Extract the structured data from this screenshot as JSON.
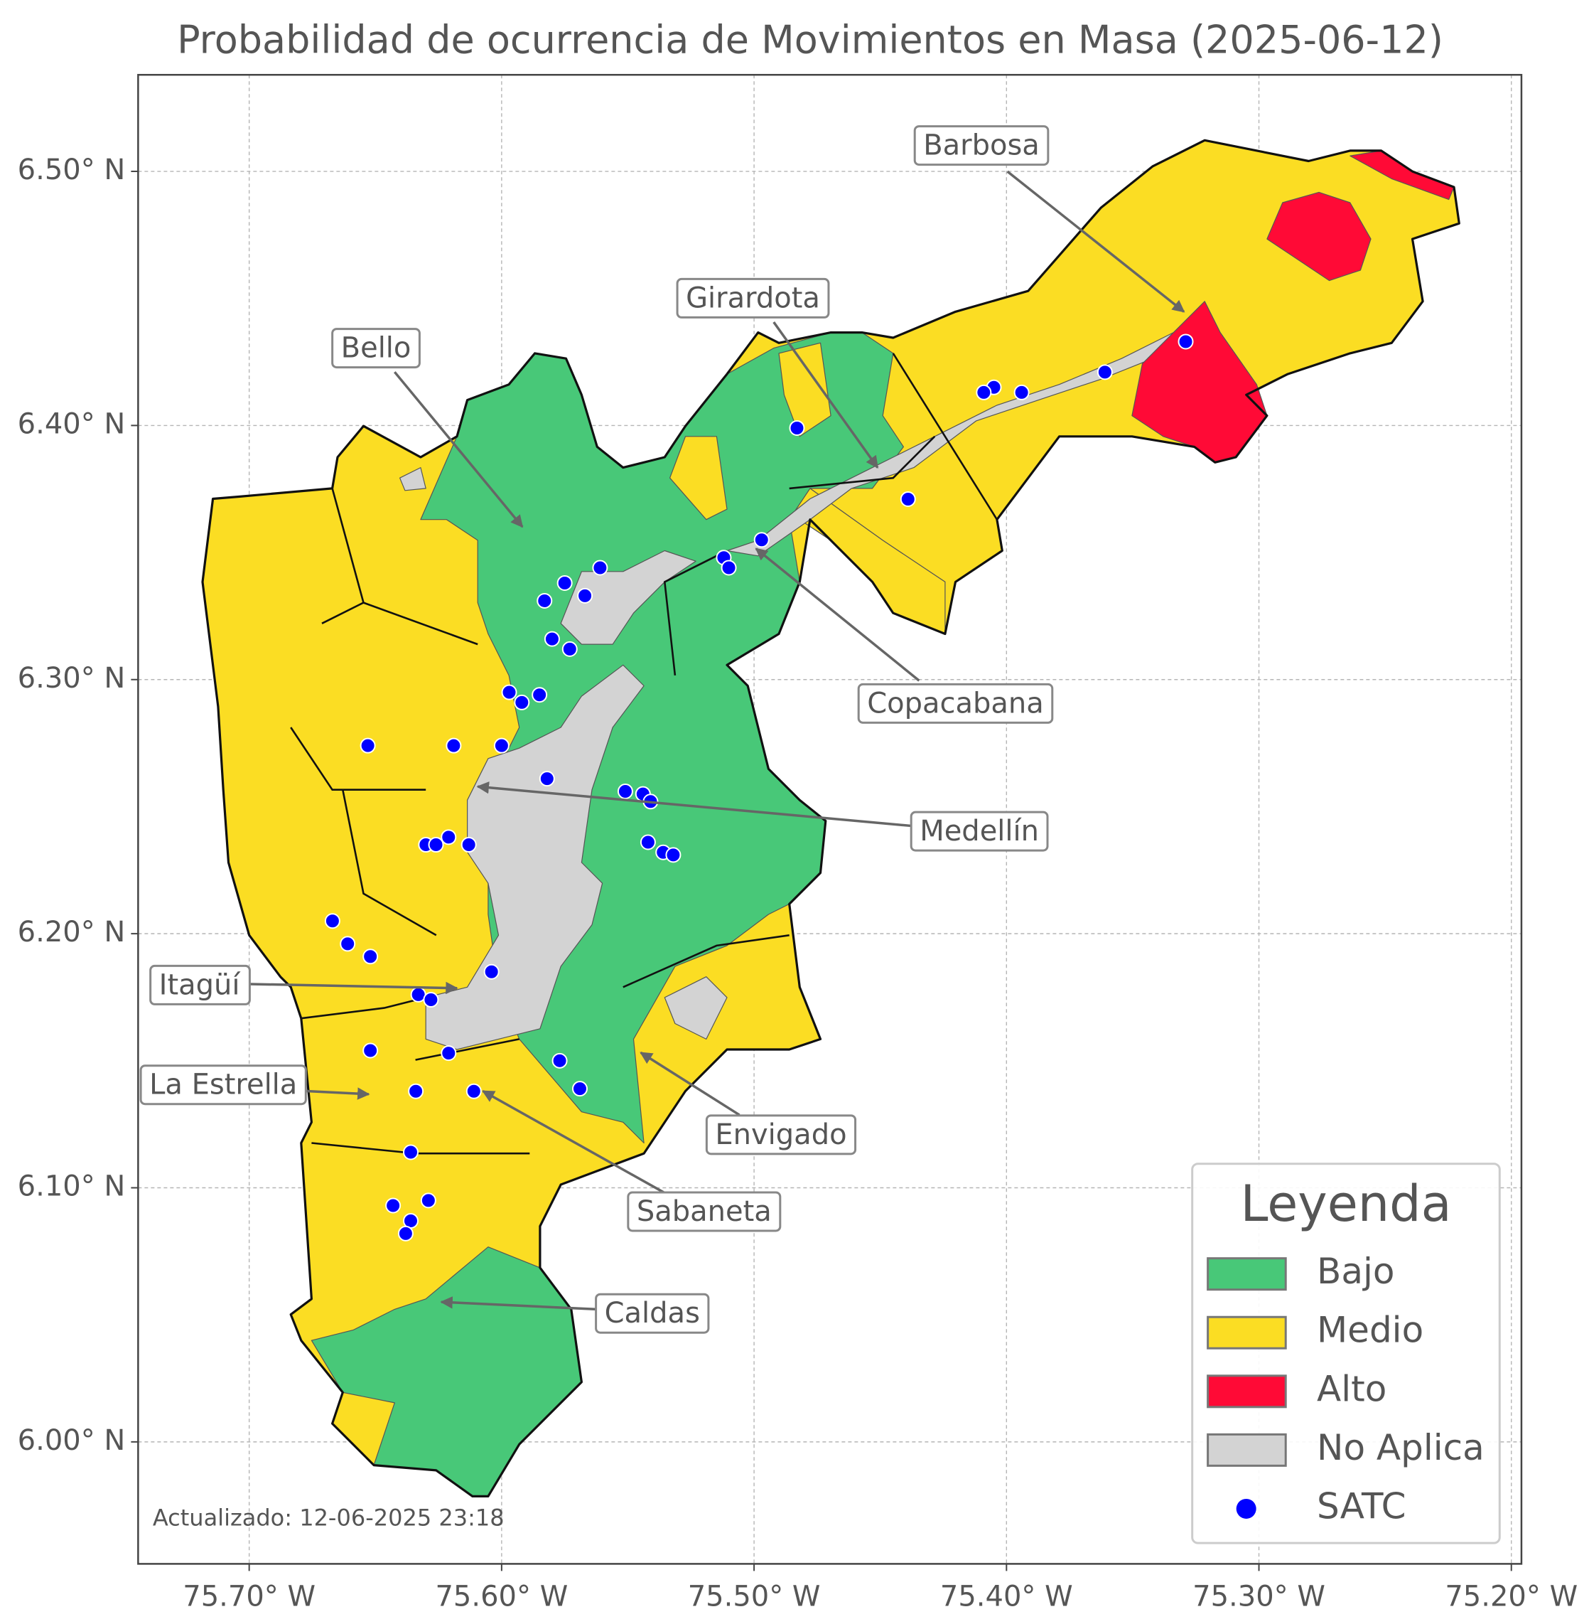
{
  "title": "Probabilidad de ocurrencia de Movimientos en Masa (2025-06-12)",
  "xaxis": {
    "lim": [
      -75.744,
      -75.196
    ],
    "ticks": [
      {
        "value": -75.7,
        "label": "75.70° W"
      },
      {
        "value": -75.6,
        "label": "75.60° W"
      },
      {
        "value": -75.5,
        "label": "75.50° W"
      },
      {
        "value": -75.4,
        "label": "75.40° W"
      },
      {
        "value": -75.3,
        "label": "75.30° W"
      },
      {
        "value": -75.2,
        "label": "75.20° W"
      }
    ]
  },
  "yaxis": {
    "lim": [
      5.952,
      6.538
    ],
    "ticks": [
      {
        "value": 6.0,
        "label": "6.00° N"
      },
      {
        "value": 6.1,
        "label": "6.10° N"
      },
      {
        "value": 6.2,
        "label": "6.20° N"
      },
      {
        "value": 6.3,
        "label": "6.30° N"
      },
      {
        "value": 6.4,
        "label": "6.40° N"
      },
      {
        "value": 6.5,
        "label": "6.50° N"
      }
    ]
  },
  "grid": true,
  "annotations": [
    "Barbosa",
    "Girardota",
    "Bello",
    "Copacabana",
    "Medellín",
    "Itagüí",
    "La Estrella",
    "Envigado",
    "Sabaneta",
    "Caldas"
  ],
  "legend": {
    "title": "Leyenda",
    "position": "lower right",
    "items": [
      {
        "name": "Bajo",
        "color": "#48c878"
      },
      {
        "name": "Medio",
        "color": "#fbdd23"
      },
      {
        "name": "Alto",
        "color": "#ff0a36"
      },
      {
        "name": "No Aplica",
        "color": "#d3d3d3"
      }
    ]
  },
  "stations": {
    "name": "SATC",
    "color": "#0000ff",
    "x": [
      -75.329,
      -75.361,
      -75.394,
      -75.405,
      -75.409,
      -75.483,
      -75.439,
      -75.497,
      -75.512,
      -75.51,
      -75.561,
      -75.575,
      -75.567,
      -75.583,
      -75.58,
      -75.573,
      -75.597,
      -75.592,
      -75.585,
      -75.619,
      -75.6,
      -75.653,
      -75.582,
      -75.551,
      -75.544,
      -75.541,
      -75.542,
      -75.536,
      -75.532,
      -75.621,
      -75.613,
      -75.63,
      -75.626,
      -75.667,
      -75.661,
      -75.652,
      -75.604,
      -75.633,
      -75.628,
      -75.621,
      -75.652,
      -75.577,
      -75.569,
      -75.611,
      -75.634,
      -75.636,
      -75.643,
      -75.629,
      -75.636,
      -75.638
    ],
    "y": [
      6.433,
      6.421,
      6.413,
      6.415,
      6.413,
      6.399,
      6.371,
      6.355,
      6.348,
      6.344,
      6.344,
      6.338,
      6.333,
      6.331,
      6.316,
      6.312,
      6.295,
      6.291,
      6.294,
      6.274,
      6.274,
      6.274,
      6.261,
      6.256,
      6.255,
      6.252,
      6.236,
      6.232,
      6.231,
      6.238,
      6.235,
      6.235,
      6.235,
      6.205,
      6.196,
      6.191,
      6.185,
      6.176,
      6.174,
      6.153,
      6.154,
      6.15,
      6.139,
      6.138,
      6.138,
      6.114,
      6.093,
      6.095,
      6.087,
      6.082
    ]
  },
  "footnote": "Actualizado: 12-06-2025 23:18"
}
